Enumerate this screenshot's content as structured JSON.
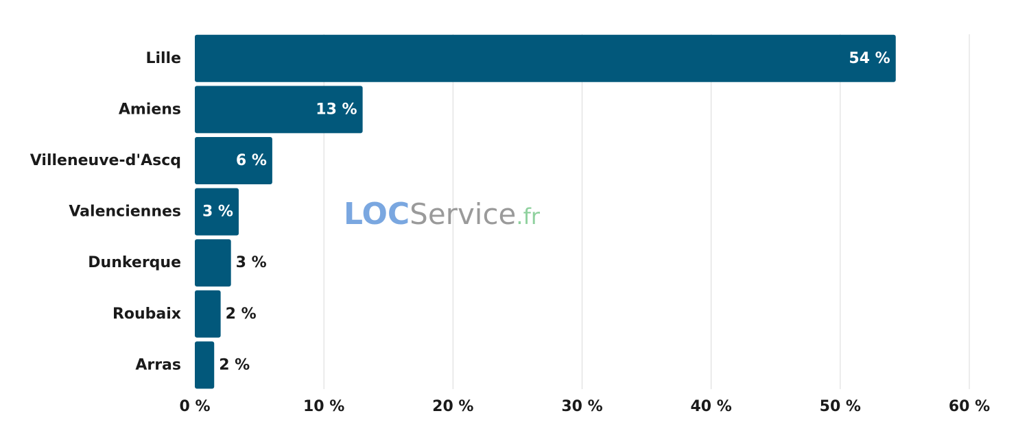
{
  "chart_data": {
    "type": "bar",
    "orientation": "horizontal",
    "categories": [
      "Lille",
      "Amiens",
      "Villeneuve-d'Ascq",
      "Valenciennes",
      "Dunkerque",
      "Roubaix",
      "Arras"
    ],
    "values": [
      54.3,
      13.0,
      6.0,
      3.4,
      2.8,
      2.0,
      1.5
    ],
    "data_labels": [
      "54 %",
      "13 %",
      "6 %",
      "3 %",
      "3 %",
      "2 %",
      "2 %"
    ],
    "xlim": [
      0,
      60
    ],
    "xticks": [
      0,
      10,
      20,
      30,
      40,
      50,
      60
    ],
    "xtick_labels": [
      "0 %",
      "10 %",
      "20 %",
      "30 %",
      "40 %",
      "50 %",
      "60 %"
    ],
    "grid": "vertical",
    "title": "",
    "xlabel": "",
    "ylabel": "",
    "colors": {
      "bar": "#02587b",
      "grid": "#d9d9d9",
      "label_inside": "#ffffff",
      "label_outside": "#1a1a1a"
    }
  },
  "watermark": {
    "part1": "LOC",
    "part2": "Service",
    "part3": ".fr",
    "colors": {
      "part1": "#7aa7e0",
      "part2": "#9a9a9a",
      "part3": "#8fd19e"
    }
  }
}
